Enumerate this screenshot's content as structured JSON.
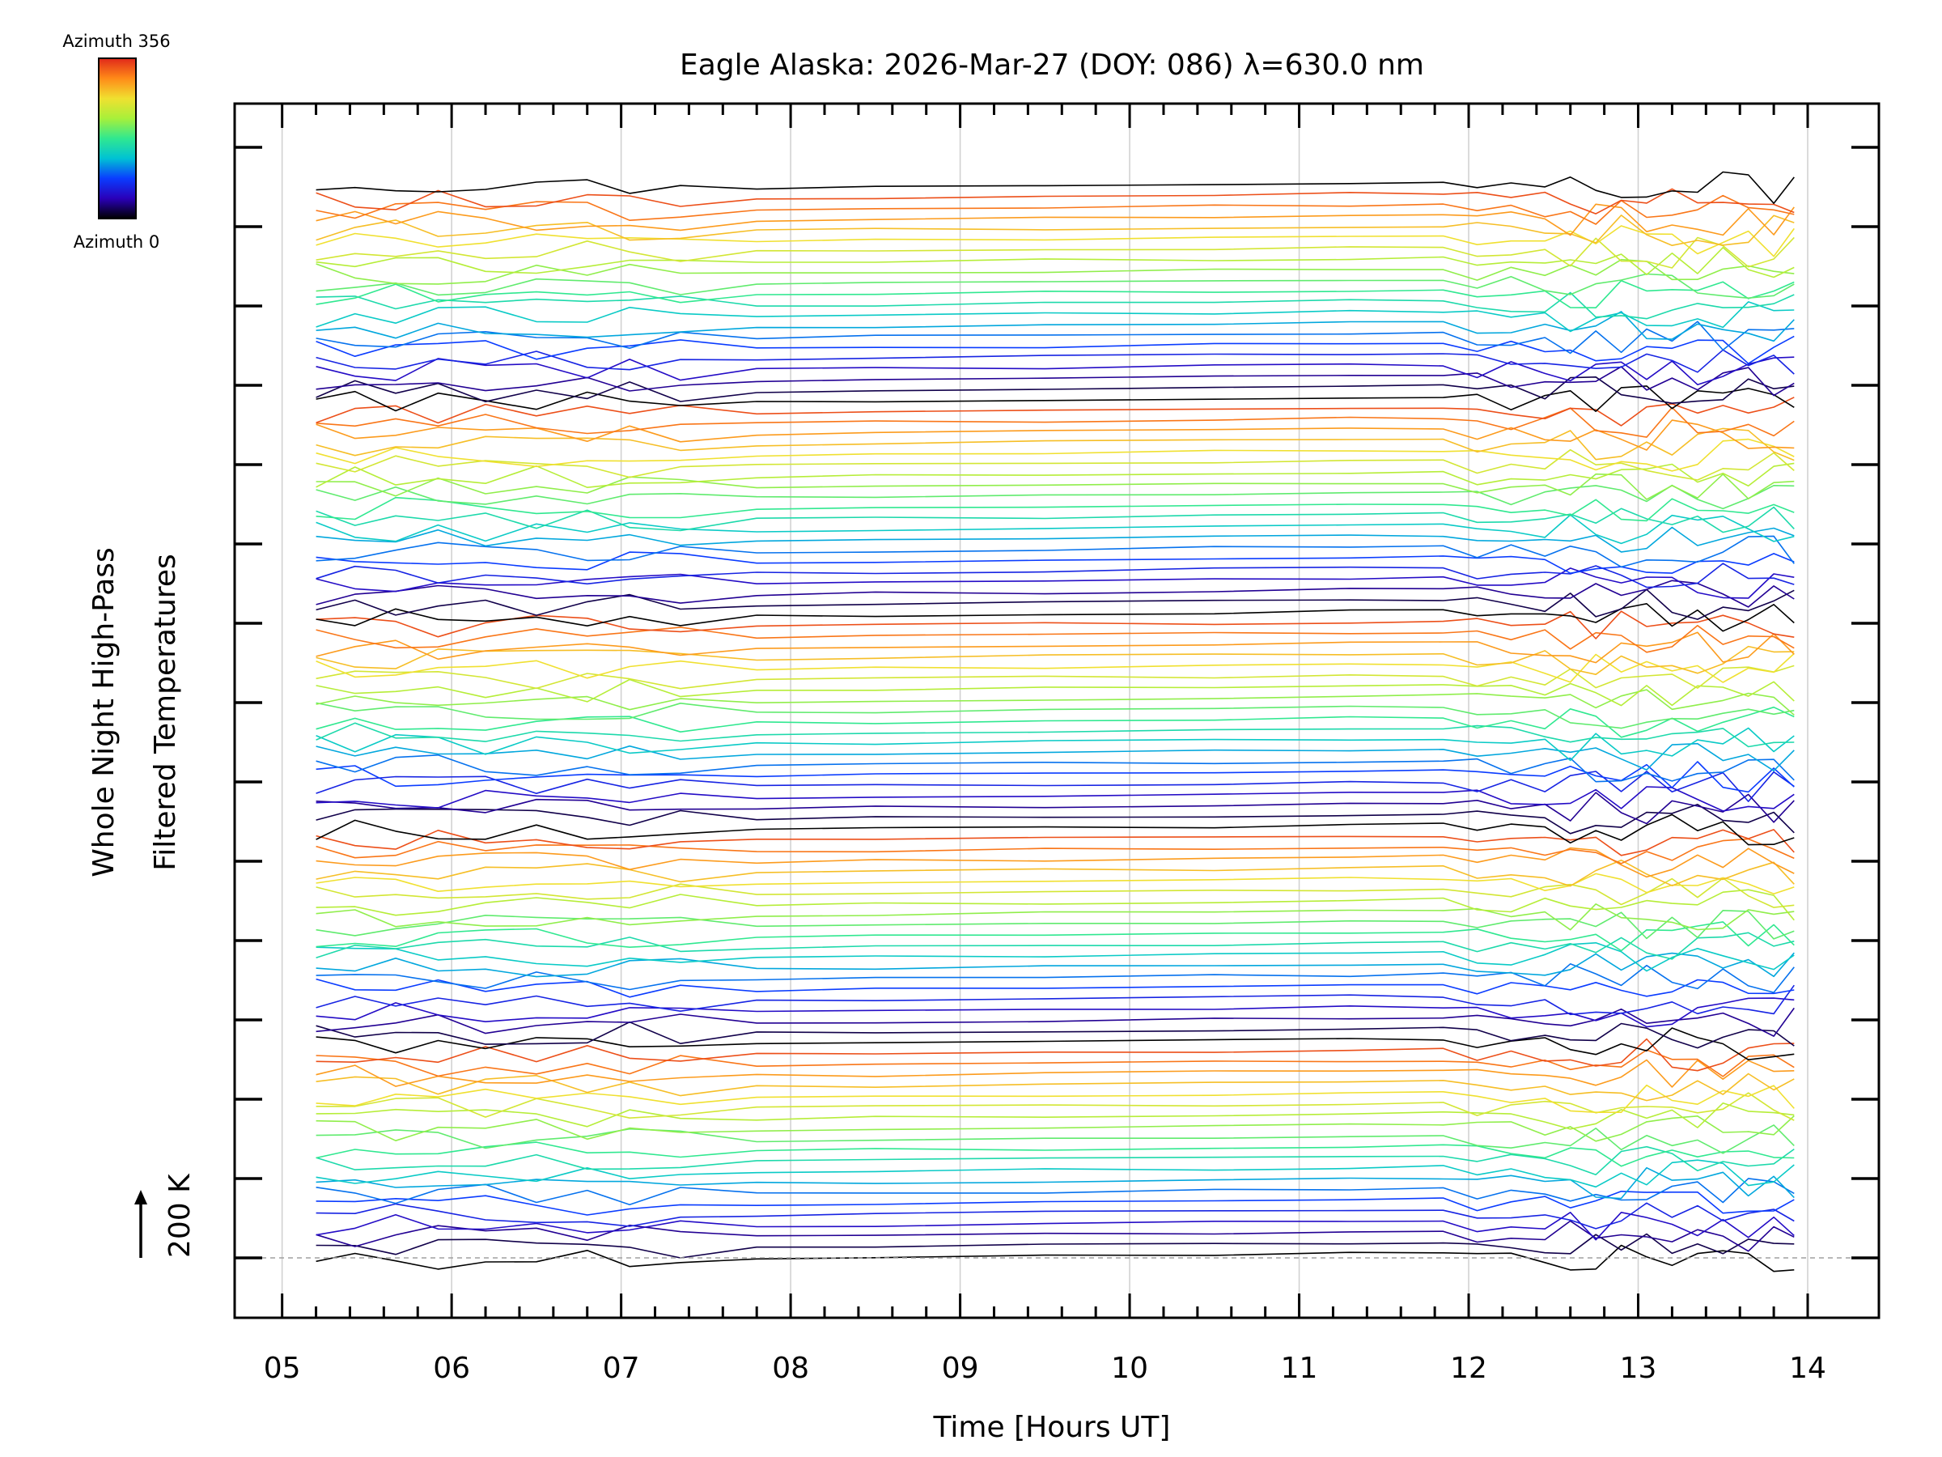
{
  "chart_data": {
    "type": "line",
    "title": "Eagle Alaska: 2026-Mar-27 (DOY: 086) λ=630.0 nm",
    "xlabel": "Time [Hours UT]",
    "ylabel_line1": "Whole Night High-Pass",
    "ylabel_line2": "Filtered Temperatures",
    "xlim": [
      4.72,
      14.42
    ],
    "x_ticks": [
      5,
      6,
      7,
      8,
      9,
      10,
      11,
      12,
      13,
      14
    ],
    "x_tick_labels": [
      "05",
      "06",
      "07",
      "08",
      "09",
      "10",
      "11",
      "12",
      "13",
      "14"
    ],
    "scale_label": "200 K",
    "scale_kelvin": 200,
    "series_count": 101,
    "series_offset_kelvin": 70,
    "stack_periods": 5,
    "series_per_period": 20,
    "time_samples": [
      5.2,
      5.43,
      5.67,
      5.92,
      6.2,
      6.5,
      6.8,
      7.05,
      7.35,
      7.8,
      8.5,
      9.5,
      10.5,
      11.3,
      11.85,
      12.05,
      12.25,
      12.45,
      12.6,
      12.75,
      12.9,
      13.05,
      13.2,
      13.35,
      13.5,
      13.65,
      13.8,
      13.92
    ],
    "colorbar": {
      "label_top": "Azimuth 356",
      "label_bottom": "Azimuth 0",
      "azimuth_min": 0,
      "azimuth_max": 356
    },
    "colors": {
      "stops": [
        "#000000",
        "#2a00b8",
        "#0a3cff",
        "#00c2d4",
        "#30e890",
        "#a8f03a",
        "#f0e030",
        "#ff8a18",
        "#e0281a"
      ],
      "grid": "#cfcfcf",
      "baseline": "#a0a0a0"
    }
  }
}
